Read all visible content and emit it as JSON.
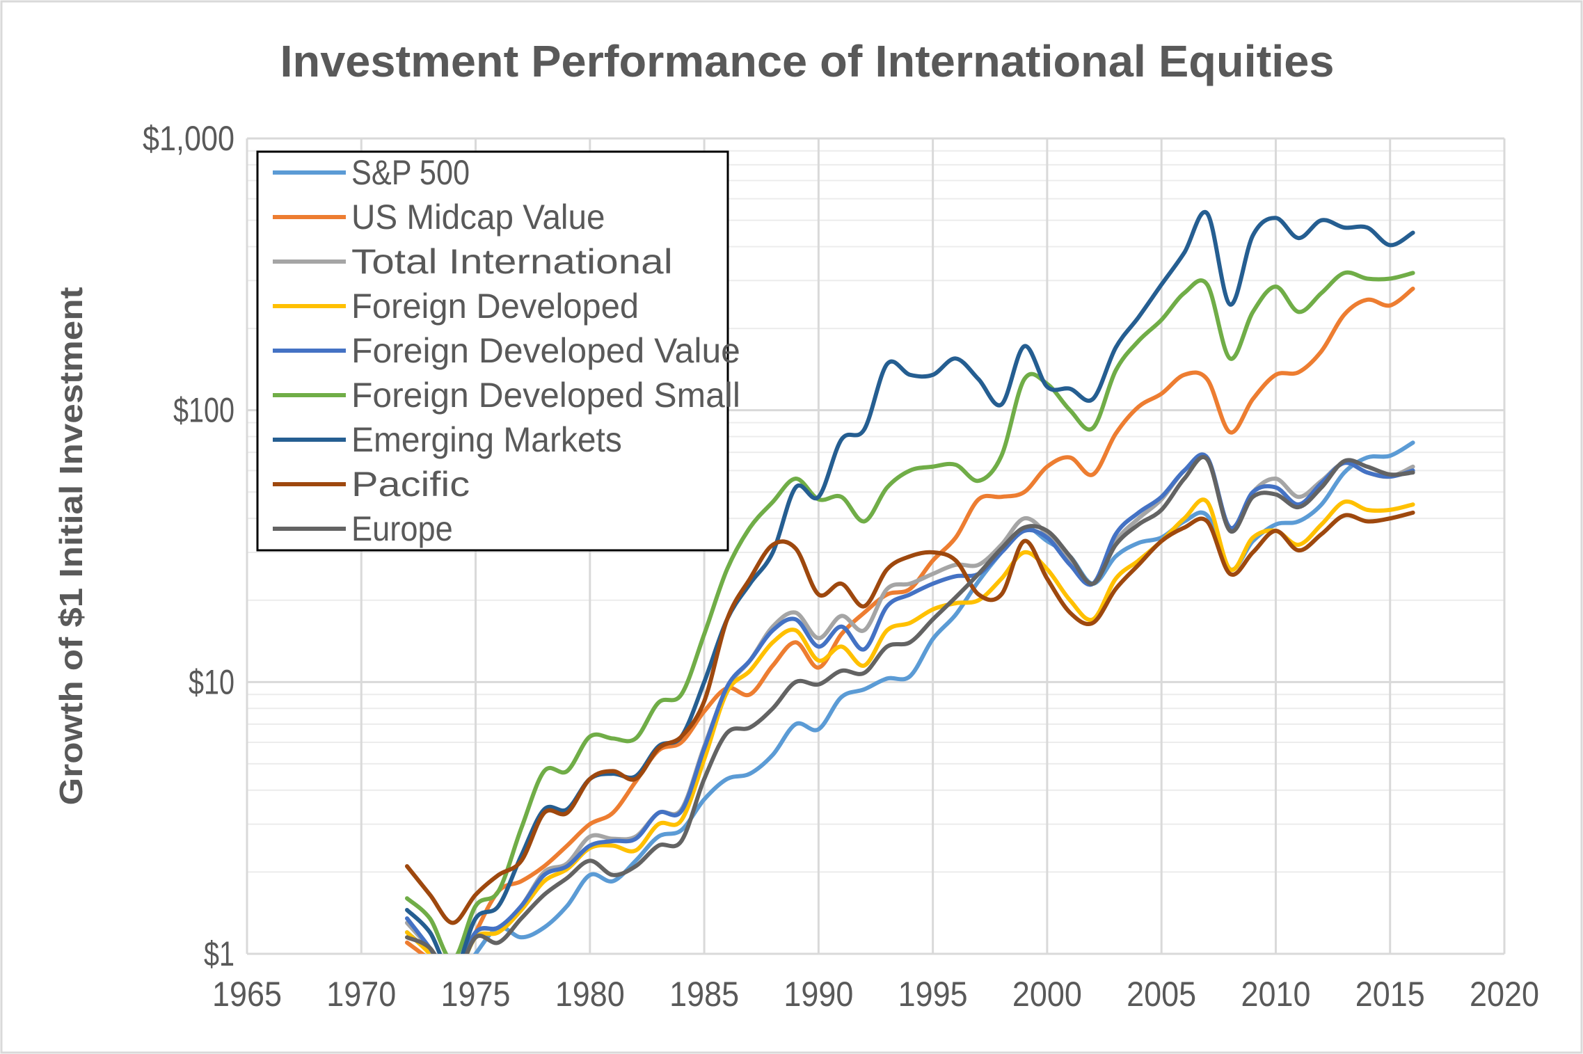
{
  "chart_data": {
    "type": "line",
    "title": "Investment Performance of International Equities",
    "xlabel": "",
    "ylabel": "Growth of $1 Initial Investment",
    "xlim": [
      1965,
      2020
    ],
    "ylim": [
      1,
      1000
    ],
    "yscale": "log",
    "x_ticks": [
      "1965",
      "1970",
      "1975",
      "1980",
      "1985",
      "1990",
      "1995",
      "2000",
      "2005",
      "2010",
      "2015",
      "2020"
    ],
    "y_ticks": [
      "$1",
      "$10",
      "$100",
      "$1,000"
    ],
    "grid": true,
    "legend_position": "top-left",
    "x": [
      1972,
      1973,
      1974,
      1975,
      1976,
      1977,
      1978,
      1979,
      1980,
      1981,
      1982,
      1983,
      1984,
      1985,
      1986,
      1987,
      1988,
      1989,
      1990,
      1991,
      1992,
      1993,
      1994,
      1995,
      1996,
      1997,
      1998,
      1999,
      2000,
      2001,
      2002,
      2003,
      2004,
      2005,
      2006,
      2007,
      2008,
      2009,
      2010,
      2011,
      2012,
      2013,
      2014,
      2015,
      2016
    ],
    "series": [
      {
        "name": "S&P 500",
        "color": "#5B9BD5",
        "values": [
          1.2,
          1.0,
          0.75,
          1.0,
          1.25,
          1.15,
          1.25,
          1.5,
          1.95,
          1.85,
          2.2,
          2.7,
          2.85,
          3.7,
          4.4,
          4.6,
          5.4,
          7.0,
          6.7,
          8.8,
          9.4,
          10.3,
          10.5,
          14.4,
          17.7,
          23.5,
          30,
          37,
          33,
          29,
          23,
          29,
          32.5,
          34,
          39,
          41,
          26,
          33,
          38,
          39,
          45,
          59,
          67,
          68,
          76
        ]
      },
      {
        "name": "US Midcap Value",
        "color": "#ED7D31",
        "values": [
          1.1,
          0.95,
          0.8,
          1.2,
          1.7,
          1.85,
          2.1,
          2.5,
          3.0,
          3.3,
          4.3,
          5.6,
          6.0,
          7.8,
          9.5,
          9.0,
          11.5,
          14,
          11.3,
          15,
          18,
          21,
          22,
          28,
          34,
          47,
          48,
          50,
          62,
          67,
          58,
          82,
          103,
          115,
          135,
          130,
          83,
          110,
          135,
          138,
          165,
          225,
          255,
          243,
          280
        ]
      },
      {
        "name": "Total International",
        "color": "#A5A5A5",
        "values": [
          1.3,
          1.05,
          0.85,
          1.2,
          1.25,
          1.5,
          2.0,
          2.15,
          2.7,
          2.65,
          2.7,
          3.3,
          3.4,
          5.8,
          9.5,
          12,
          16,
          18,
          14.5,
          17.5,
          15.5,
          22,
          23,
          25,
          27,
          27,
          32,
          40,
          35,
          28,
          23,
          33,
          40,
          47,
          60,
          66,
          37,
          50,
          56,
          48,
          55,
          64,
          59,
          57,
          62
        ]
      },
      {
        "name": "Foreign Developed",
        "color": "#FFC000",
        "values": [
          1.2,
          1.0,
          0.8,
          1.15,
          1.2,
          1.45,
          1.85,
          2.05,
          2.45,
          2.5,
          2.4,
          3.0,
          3.1,
          5.2,
          9.2,
          11,
          14,
          15.5,
          12,
          13.5,
          11.5,
          15.5,
          16.5,
          18.5,
          19.5,
          20,
          24,
          30,
          26,
          20,
          17,
          24,
          28,
          33,
          40,
          46,
          26,
          34,
          36,
          32,
          38,
          46,
          43,
          43,
          45
        ]
      },
      {
        "name": "Foreign Developed Value",
        "color": "#4472C4",
        "values": [
          1.35,
          1.05,
          0.8,
          1.2,
          1.25,
          1.5,
          1.95,
          2.1,
          2.5,
          2.6,
          2.65,
          3.3,
          3.35,
          5.7,
          9.6,
          12,
          15.5,
          17,
          13.5,
          16,
          13.2,
          19,
          21,
          23,
          24.5,
          25,
          30,
          36,
          34,
          27,
          23,
          35,
          42,
          48,
          60,
          67,
          37,
          50,
          52,
          45,
          54,
          64,
          59,
          57,
          60
        ]
      },
      {
        "name": "Foreign Developed Small",
        "color": "#70AD47",
        "values": [
          1.6,
          1.35,
          0.95,
          1.5,
          1.7,
          2.9,
          4.7,
          4.7,
          6.3,
          6.2,
          6.2,
          8.4,
          9.0,
          15,
          26,
          37,
          46,
          56,
          47,
          48,
          39,
          52,
          60,
          62,
          63,
          55,
          68,
          130,
          125,
          100,
          86,
          140,
          180,
          215,
          270,
          290,
          155,
          230,
          285,
          230,
          270,
          320,
          305,
          305,
          320
        ]
      },
      {
        "name": "Emerging Markets",
        "color": "#255E91",
        "values": [
          1.45,
          1.2,
          0.85,
          1.35,
          1.5,
          2.3,
          3.4,
          3.4,
          4.4,
          4.6,
          4.5,
          5.8,
          6.3,
          10,
          17,
          23,
          30,
          52,
          48,
          78,
          85,
          148,
          135,
          135,
          155,
          130,
          105,
          172,
          122,
          120,
          110,
          170,
          220,
          290,
          380,
          530,
          245,
          440,
          510,
          430,
          500,
          470,
          470,
          405,
          450
        ]
      },
      {
        "name": "Pacific",
        "color": "#9E480E",
        "values": [
          2.1,
          1.65,
          1.3,
          1.65,
          1.95,
          2.2,
          3.3,
          3.3,
          4.4,
          4.7,
          4.4,
          5.7,
          6.3,
          8.5,
          17,
          24,
          32,
          31,
          21,
          23,
          19,
          26,
          29,
          30,
          28,
          21,
          21,
          33,
          24,
          18,
          16.5,
          22,
          27,
          33,
          37,
          39,
          25,
          30,
          36,
          30.5,
          35,
          41,
          39,
          40,
          42
        ]
      },
      {
        "name": "Europe",
        "color": "#636363",
        "values": [
          1.15,
          1.05,
          0.8,
          1.15,
          1.1,
          1.35,
          1.65,
          1.9,
          2.2,
          1.95,
          2.1,
          2.5,
          2.6,
          4.4,
          6.5,
          6.8,
          8,
          10,
          9.8,
          11,
          10.8,
          13.5,
          14,
          17,
          20.5,
          25,
          31,
          37,
          36,
          29,
          23,
          32,
          38,
          43,
          56,
          66,
          36,
          48,
          49,
          44,
          52,
          65,
          62,
          58,
          59
        ]
      }
    ]
  }
}
